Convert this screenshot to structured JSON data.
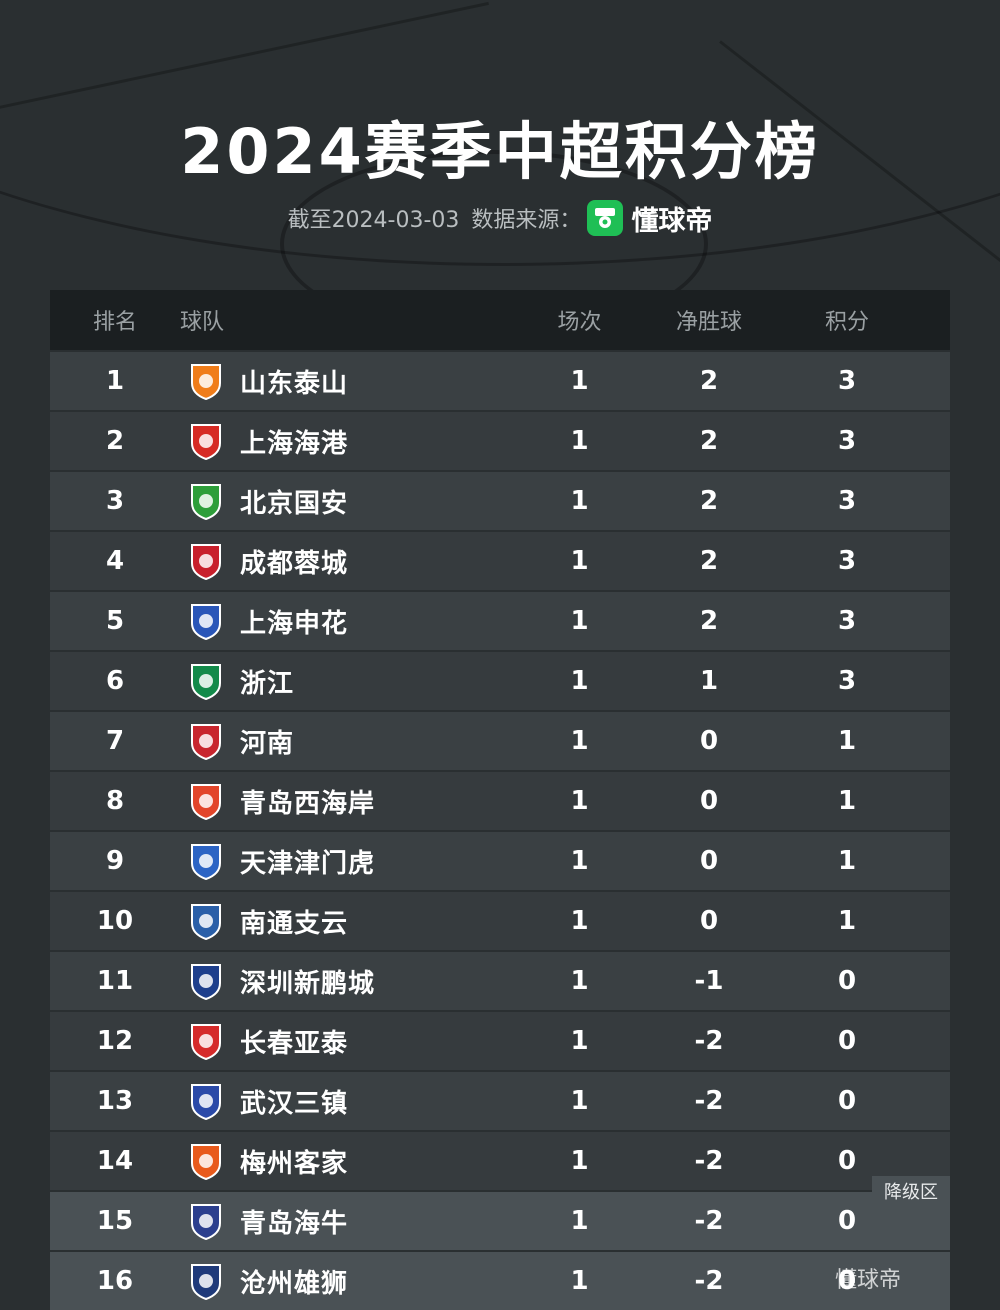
{
  "title": "2024赛季中超积分榜",
  "subtitle": {
    "date_label": "截至2024-03-03",
    "source_label": "数据来源：",
    "brand": "懂球帝"
  },
  "headers": {
    "rank": "排名",
    "team": "球队",
    "played": "场次",
    "goal_diff": "净胜球",
    "points": "积分"
  },
  "rows": [
    {
      "rank": "1",
      "team": "山东泰山",
      "played": "1",
      "gd": "2",
      "pts": "3",
      "logo_color": "#f07d1a"
    },
    {
      "rank": "2",
      "team": "上海海港",
      "played": "1",
      "gd": "2",
      "pts": "3",
      "logo_color": "#d62b24"
    },
    {
      "rank": "3",
      "team": "北京国安",
      "played": "1",
      "gd": "2",
      "pts": "3",
      "logo_color": "#2e9e3a"
    },
    {
      "rank": "4",
      "team": "成都蓉城",
      "played": "1",
      "gd": "2",
      "pts": "3",
      "logo_color": "#c8202c"
    },
    {
      "rank": "5",
      "team": "上海申花",
      "played": "1",
      "gd": "2",
      "pts": "3",
      "logo_color": "#2a56b8"
    },
    {
      "rank": "6",
      "team": "浙江",
      "played": "1",
      "gd": "1",
      "pts": "3",
      "logo_color": "#138a4a"
    },
    {
      "rank": "7",
      "team": "河南",
      "played": "1",
      "gd": "0",
      "pts": "1",
      "logo_color": "#c8262e"
    },
    {
      "rank": "8",
      "team": "青岛西海岸",
      "played": "1",
      "gd": "0",
      "pts": "1",
      "logo_color": "#e2452a"
    },
    {
      "rank": "9",
      "team": "天津津门虎",
      "played": "1",
      "gd": "0",
      "pts": "1",
      "logo_color": "#2c64c4"
    },
    {
      "rank": "10",
      "team": "南通支云",
      "played": "1",
      "gd": "0",
      "pts": "1",
      "logo_color": "#2a5fa8"
    },
    {
      "rank": "11",
      "team": "深圳新鹏城",
      "played": "1",
      "gd": "-1",
      "pts": "0",
      "logo_color": "#1e3f8c"
    },
    {
      "rank": "12",
      "team": "长春亚泰",
      "played": "1",
      "gd": "-2",
      "pts": "0",
      "logo_color": "#d52b2b"
    },
    {
      "rank": "13",
      "team": "武汉三镇",
      "played": "1",
      "gd": "-2",
      "pts": "0",
      "logo_color": "#2b4aa8"
    },
    {
      "rank": "14",
      "team": "梅州客家",
      "played": "1",
      "gd": "-2",
      "pts": "0",
      "logo_color": "#e85a1c"
    },
    {
      "rank": "15",
      "team": "青岛海牛",
      "played": "1",
      "gd": "-2",
      "pts": "0",
      "logo_color": "#2c3f8e"
    },
    {
      "rank": "16",
      "team": "沧州雄狮",
      "played": "1",
      "gd": "-2",
      "pts": "0",
      "logo_color": "#1f3a7a"
    }
  ],
  "relegation_tag": "降级区",
  "watermark": "懂球帝"
}
